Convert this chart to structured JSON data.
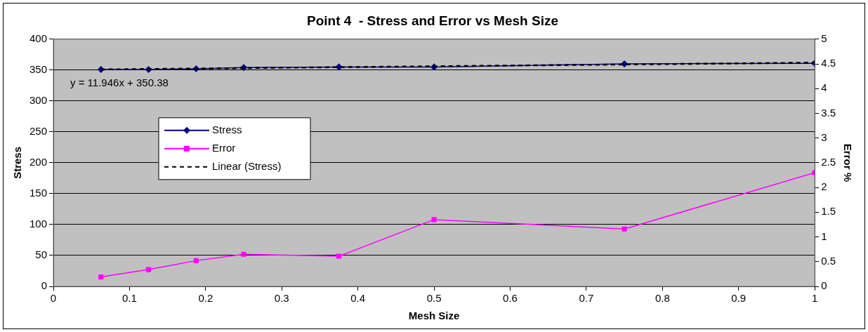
{
  "chart_data": {
    "type": "line",
    "title": "Point 4  - Stress and Error vs Mesh Size",
    "xlabel": "Mesh Size",
    "ylabel": "Stress",
    "y2label": "Error %",
    "xlim": [
      0,
      1
    ],
    "xticks": [
      0,
      0.1,
      0.2,
      0.3,
      0.4,
      0.5,
      0.6,
      0.7,
      0.8,
      0.9,
      1
    ],
    "ylim": [
      0,
      400
    ],
    "yticks": [
      0,
      50,
      100,
      150,
      200,
      250,
      300,
      350,
      400
    ],
    "y2lim": [
      0,
      5
    ],
    "y2ticks": [
      0,
      0.5,
      1,
      1.5,
      2,
      2.5,
      3,
      3.5,
      4,
      4.5,
      5
    ],
    "grid": "y",
    "legend": "left",
    "annotations": [
      "y = 11.946x + 350.38"
    ],
    "series": [
      {
        "name": "Stress",
        "color": "#000080",
        "marker": "diamond",
        "x": [
          0.0625,
          0.125,
          0.1875,
          0.25,
          0.375,
          0.5,
          0.75,
          1
        ],
        "values": [
          351,
          351,
          352,
          354,
          355,
          355,
          360,
          361
        ]
      },
      {
        "name": "Error",
        "color": "#ff00ff",
        "marker": "square",
        "axis": "y2",
        "x": [
          0.0625,
          0.125,
          0.1875,
          0.25,
          0.375,
          0.5,
          0.75,
          1
        ],
        "values": [
          0.19,
          0.34,
          0.52,
          0.65,
          0.61,
          1.35,
          1.16,
          2.3
        ]
      },
      {
        "name": "Linear (Stress)",
        "color": "#000000",
        "marker": "none",
        "line_style": "dashed",
        "x": [
          0.0625,
          1
        ],
        "values": [
          351,
          362
        ]
      }
    ]
  }
}
